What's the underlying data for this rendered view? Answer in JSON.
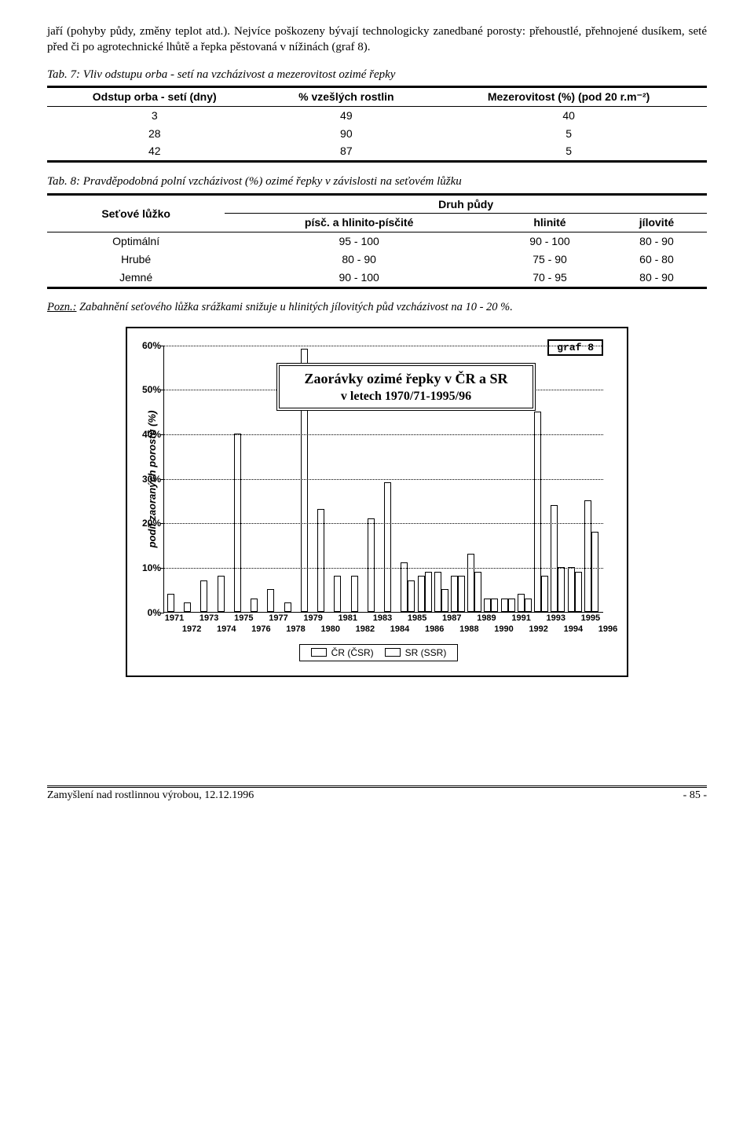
{
  "paragraph": "jaří (pohyby půdy, změny teplot atd.). Nejvíce poškozeny bývají technologicky zanedbané porosty: přehoustlé, přehnojené dusíkem, seté před či po agrotechnické lhůtě a řepka pěstovaná v nížinách (graf 8).",
  "table7_caption": "Tab. 7: Vliv odstupu orba - setí na vzcházivost a mezerovitost ozimé řepky",
  "table7": {
    "cols": [
      "Odstup orba - setí (dny)",
      "% vzešlých rostlin",
      "Mezerovitost (%) (pod 20 r.m⁻²)"
    ],
    "rows": [
      [
        "3",
        "49",
        "40"
      ],
      [
        "28",
        "90",
        "5"
      ],
      [
        "42",
        "87",
        "5"
      ]
    ]
  },
  "table8_caption": "Tab. 8: Pravděpodobná polní vzcházivost (%) ozimé řepky v závislosti na seťovém lůžku",
  "table8": {
    "head1": "Seťové lůžko",
    "head_group": "Druh půdy",
    "sub_cols": [
      "písč. a hlinito-písčité",
      "hlinité",
      "jílovité"
    ],
    "rows": [
      [
        "Optimální",
        "95 - 100",
        "90 - 100",
        "80 - 90"
      ],
      [
        "Hrubé",
        "80 - 90",
        "75 - 90",
        "60 - 80"
      ],
      [
        "Jemné",
        "90 - 100",
        "70 - 95",
        "80 - 90"
      ]
    ]
  },
  "pozn_label": "Pozn.:",
  "pozn": " Zabahnění seťového lůžka srážkami snižuje u hlinitých jílovitých půd vzcházivost na 10 - 20 %.",
  "chart": {
    "type": "bar",
    "label": "graf 8",
    "title_big": "Zaorávky ozimé řepky v ČR a SR",
    "title_small": "v letech 1970/71-1995/96",
    "ylabel": "podíl zaoraných porostů (%)",
    "ymax": 60,
    "ytick_step": 10,
    "yticks": [
      "0%",
      "10%",
      "20%",
      "30%",
      "40%",
      "50%",
      "60%"
    ],
    "years": [
      1971,
      1972,
      1973,
      1974,
      1975,
      1976,
      1977,
      1978,
      1979,
      1980,
      1981,
      1982,
      1983,
      1984,
      1985,
      1986,
      1987,
      1988,
      1989,
      1990,
      1991,
      1992,
      1993,
      1994,
      1995,
      1996
    ],
    "xlabels_top": [
      "1971",
      "1973",
      "1975",
      "1977",
      "1979",
      "1981",
      "1983",
      "1985",
      "1987",
      "1989",
      "1991",
      "1993",
      "1995"
    ],
    "xlabels_bottom": [
      "1972",
      "1974",
      "1976",
      "1978",
      "1980",
      "1982",
      "1984",
      "1986",
      "1988",
      "1990",
      "1992",
      "1994",
      "1996"
    ],
    "series": {
      "cr": [
        4,
        2,
        7,
        8,
        40,
        3,
        5,
        2,
        59,
        23,
        8,
        8,
        21,
        29,
        11,
        8,
        9,
        8,
        13,
        3,
        3,
        4,
        45,
        24,
        10,
        25
      ],
      "sr": [
        0,
        0,
        0,
        0,
        0,
        0,
        0,
        0,
        0,
        0,
        0,
        0,
        0,
        0,
        7,
        9,
        5,
        8,
        9,
        3,
        3,
        3,
        8,
        10,
        9,
        18
      ]
    },
    "legend": [
      "ČR (ČSR)",
      "SR (SSR)"
    ],
    "colors": {
      "border": "#000000",
      "fill": "#ffffff",
      "grid": "#000000"
    },
    "background_color": "#ffffff"
  },
  "footer_left": "Zamyšlení nad rostlinnou výrobou, 12.12.1996",
  "footer_right": "- 85 -"
}
